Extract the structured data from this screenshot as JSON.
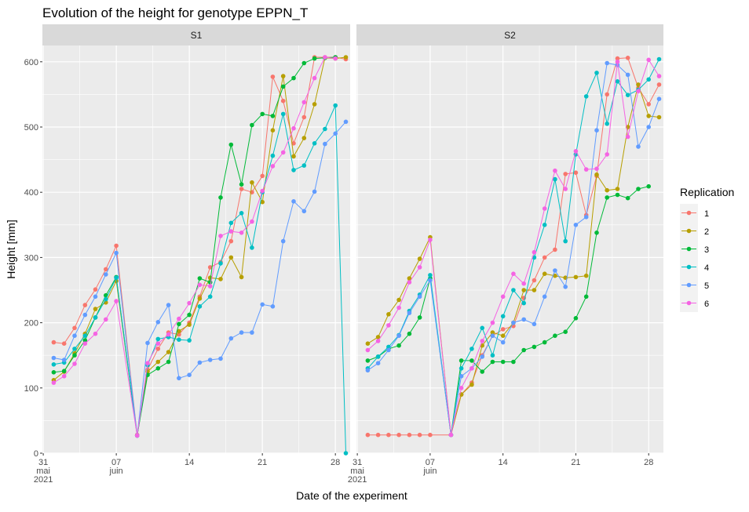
{
  "chart_data": {
    "type": "line",
    "title": "Evolution of the height for genotype EPPN_T",
    "xlabel": "Date of the experiment",
    "ylabel": "Height [mm]",
    "ylim": [
      0,
      625
    ],
    "xlim": [
      "2021-05-30T22:00",
      "2021-06-29T10:00"
    ],
    "grid": true,
    "legend": {
      "title": "Replication",
      "position": "right"
    },
    "x_ticks": [
      {
        "date": "2021-05-31",
        "label": [
          "31",
          "mai",
          "2021"
        ]
      },
      {
        "date": "2021-06-07",
        "label": [
          "07",
          "juin"
        ]
      },
      {
        "date": "2021-06-14",
        "label": [
          "14"
        ]
      },
      {
        "date": "2021-06-21",
        "label": [
          "21"
        ]
      },
      {
        "date": "2021-06-28",
        "label": [
          "28"
        ]
      }
    ],
    "y_ticks": [
      0,
      100,
      200,
      300,
      400,
      500,
      600
    ],
    "series_colors": {
      "1": "#F8766D",
      "2": "#B79F00",
      "3": "#00BA38",
      "4": "#00BFC4",
      "5": "#619CFF",
      "6": "#F564E3"
    },
    "panels": [
      {
        "name": "S1",
        "series": [
          {
            "name": "1",
            "x": [
              "2021-06-01",
              "2021-06-02",
              "2021-06-03",
              "2021-06-04",
              "2021-06-05",
              "2021-06-06",
              "2021-06-07",
              "2021-06-09",
              "2021-06-10",
              "2021-06-11",
              "2021-06-12",
              "2021-06-13",
              "2021-06-14",
              "2021-06-15",
              "2021-06-16",
              "2021-06-17",
              "2021-06-18",
              "2021-06-19",
              "2021-06-20",
              "2021-06-21",
              "2021-06-22",
              "2021-06-23",
              "2021-06-24",
              "2021-06-25",
              "2021-06-26",
              "2021-06-27",
              "2021-06-28",
              "2021-06-29"
            ],
            "values": [
              170,
              168,
              192,
              227,
              251,
              282,
              318,
              28,
              128,
              160,
              185,
              182,
              200,
              240,
              285,
              293,
              325,
              405,
              400,
              425,
              577,
              540,
              475,
              515,
              607,
              607,
              607,
              604
            ]
          },
          {
            "name": "2",
            "x": [
              "2021-06-01",
              "2021-06-02",
              "2021-06-03",
              "2021-06-04",
              "2021-06-05",
              "2021-06-06",
              "2021-06-07",
              "2021-06-09",
              "2021-06-10",
              "2021-06-11",
              "2021-06-12",
              "2021-06-13",
              "2021-06-14",
              "2021-06-15",
              "2021-06-16",
              "2021-06-17",
              "2021-06-18",
              "2021-06-19",
              "2021-06-20",
              "2021-06-21",
              "2021-06-22",
              "2021-06-23",
              "2021-06-24",
              "2021-06-25",
              "2021-06-26",
              "2021-06-27",
              "2021-06-28",
              "2021-06-29"
            ],
            "values": [
              112,
              125,
              153,
              183,
              221,
              231,
              264,
              27,
              125,
              140,
              155,
              187,
              197,
              237,
              269,
              267,
              300,
              270,
              415,
              385,
              495,
              578,
              455,
              483,
              535,
              606,
              605,
              607
            ]
          },
          {
            "name": "3",
            "x": [
              "2021-06-01",
              "2021-06-02",
              "2021-06-03",
              "2021-06-04",
              "2021-06-05",
              "2021-06-06",
              "2021-06-07",
              "2021-06-09",
              "2021-06-10",
              "2021-06-11",
              "2021-06-12",
              "2021-06-13",
              "2021-06-14",
              "2021-06-15",
              "2021-06-16",
              "2021-06-17",
              "2021-06-18",
              "2021-06-19",
              "2021-06-20",
              "2021-06-21",
              "2021-06-22",
              "2021-06-23",
              "2021-06-24",
              "2021-06-25",
              "2021-06-26",
              "2021-06-27",
              "2021-06-28"
            ],
            "values": [
              124,
              126,
              150,
              173,
              208,
              242,
              270,
              27,
              120,
              130,
              140,
              198,
              212,
              268,
              262,
              392,
              473,
              412,
              503,
              520,
              517,
              562,
              575,
              598,
              605,
              606,
              607
            ]
          },
          {
            "name": "4",
            "x": [
              "2021-06-01",
              "2021-06-02",
              "2021-06-03",
              "2021-06-04",
              "2021-06-05",
              "2021-06-06",
              "2021-06-07",
              "2021-06-09",
              "2021-06-10",
              "2021-06-11",
              "2021-06-12",
              "2021-06-13",
              "2021-06-14",
              "2021-06-15",
              "2021-06-16",
              "2021-06-17",
              "2021-06-18",
              "2021-06-19",
              "2021-06-20",
              "2021-06-21",
              "2021-06-22",
              "2021-06-23",
              "2021-06-24",
              "2021-06-25",
              "2021-06-26",
              "2021-06-27",
              "2021-06-28",
              "2021-06-29"
            ],
            "values": [
              136,
              139,
              160,
              180,
              208,
              236,
              269,
              27,
              135,
              175,
              178,
              174,
              173,
              225,
              240,
              291,
              353,
              368,
              315,
              400,
              456,
              520,
              434,
              441,
              475,
              497,
              533,
              0
            ]
          },
          {
            "name": "5",
            "x": [
              "2021-06-01",
              "2021-06-02",
              "2021-06-03",
              "2021-06-04",
              "2021-06-05",
              "2021-06-06",
              "2021-06-07",
              "2021-06-09",
              "2021-06-10",
              "2021-06-11",
              "2021-06-12",
              "2021-06-13",
              "2021-06-14",
              "2021-06-15",
              "2021-06-16",
              "2021-06-17",
              "2021-06-18",
              "2021-06-19",
              "2021-06-20",
              "2021-06-21",
              "2021-06-22",
              "2021-06-23",
              "2021-06-24",
              "2021-06-25",
              "2021-06-26",
              "2021-06-27",
              "2021-06-28",
              "2021-06-29"
            ],
            "values": [
              146,
              143,
              180,
              212,
              240,
              274,
              307,
              27,
              169,
              201,
              227,
              115,
              120,
              139,
              143,
              145,
              176,
              185,
              185,
              228,
              225,
              325,
              386,
              371,
              401,
              474,
              490,
              508
            ]
          },
          {
            "name": "6",
            "x": [
              "2021-06-01",
              "2021-06-02",
              "2021-06-03",
              "2021-06-04",
              "2021-06-05",
              "2021-06-06",
              "2021-06-07",
              "2021-06-09",
              "2021-06-10",
              "2021-06-11",
              "2021-06-12",
              "2021-06-13",
              "2021-06-14",
              "2021-06-15",
              "2021-06-16",
              "2021-06-17",
              "2021-06-18",
              "2021-06-19",
              "2021-06-20",
              "2021-06-21",
              "2021-06-22",
              "2021-06-23",
              "2021-06-24",
              "2021-06-25",
              "2021-06-26",
              "2021-06-27",
              "2021-06-28"
            ],
            "values": [
              108,
              118,
              137,
              168,
              183,
              205,
              233,
              27,
              138,
              168,
              182,
              206,
              230,
              258,
              256,
              333,
              340,
              338,
              355,
              402,
              440,
              461,
              498,
              538,
              575,
              607,
              605
            ]
          }
        ]
      },
      {
        "name": "S2",
        "series": [
          {
            "name": "1",
            "x": [
              "2021-06-01",
              "2021-06-02",
              "2021-06-03",
              "2021-06-04",
              "2021-06-05",
              "2021-06-06",
              "2021-06-07",
              "2021-06-09",
              "2021-06-10",
              "2021-06-11",
              "2021-06-12",
              "2021-06-13",
              "2021-06-14",
              "2021-06-15",
              "2021-06-16",
              "2021-06-17",
              "2021-06-18",
              "2021-06-19",
              "2021-06-20",
              "2021-06-21",
              "2021-06-22",
              "2021-06-23",
              "2021-06-24",
              "2021-06-25",
              "2021-06-26",
              "2021-06-27",
              "2021-06-28",
              "2021-06-29"
            ],
            "values": [
              28,
              28,
              28,
              28,
              28,
              28,
              28,
              28,
              90,
              108,
              150,
              180,
              190,
              195,
              238,
              265,
              300,
              312,
              428,
              430,
              365,
              425,
              550,
              605,
              606,
              560,
              535,
              565
            ]
          },
          {
            "name": "2",
            "x": [
              "2021-06-01",
              "2021-06-02",
              "2021-06-03",
              "2021-06-04",
              "2021-06-05",
              "2021-06-06",
              "2021-06-07",
              "2021-06-09",
              "2021-06-10",
              "2021-06-11",
              "2021-06-12",
              "2021-06-13",
              "2021-06-14",
              "2021-06-15",
              "2021-06-16",
              "2021-06-17",
              "2021-06-18",
              "2021-06-19",
              "2021-06-20",
              "2021-06-21",
              "2021-06-22",
              "2021-06-23",
              "2021-06-24",
              "2021-06-25",
              "2021-06-26",
              "2021-06-27",
              "2021-06-28",
              "2021-06-29"
            ],
            "values": [
              168,
              178,
              213,
              235,
              268,
              298,
              331,
              28,
              90,
              105,
              165,
              185,
              180,
              200,
              250,
              250,
              275,
              272,
              269,
              270,
              272,
              427,
              403,
              405,
              500,
              565,
              517,
              515
            ]
          },
          {
            "name": "3",
            "x": [
              "2021-06-01",
              "2021-06-02",
              "2021-06-03",
              "2021-06-04",
              "2021-06-05",
              "2021-06-06",
              "2021-06-07",
              "2021-06-09",
              "2021-06-10",
              "2021-06-11",
              "2021-06-12",
              "2021-06-13",
              "2021-06-14",
              "2021-06-15",
              "2021-06-16",
              "2021-06-17",
              "2021-06-18",
              "2021-06-19",
              "2021-06-20",
              "2021-06-21",
              "2021-06-22",
              "2021-06-23",
              "2021-06-24",
              "2021-06-25",
              "2021-06-26",
              "2021-06-27",
              "2021-06-28"
            ],
            "values": [
              142,
              148,
              160,
              165,
              183,
              208,
              268,
              28,
              142,
              142,
              125,
              140,
              140,
              140,
              158,
              163,
              170,
              180,
              186,
              207,
              240,
              338,
              392,
              396,
              391,
              405,
              409
            ]
          },
          {
            "name": "4",
            "x": [
              "2021-06-01",
              "2021-06-02",
              "2021-06-03",
              "2021-06-04",
              "2021-06-05",
              "2021-06-06",
              "2021-06-07",
              "2021-06-09",
              "2021-06-10",
              "2021-06-11",
              "2021-06-12",
              "2021-06-13",
              "2021-06-14",
              "2021-06-15",
              "2021-06-16",
              "2021-06-17",
              "2021-06-18",
              "2021-06-19",
              "2021-06-20",
              "2021-06-21",
              "2021-06-22",
              "2021-06-23",
              "2021-06-24",
              "2021-06-25",
              "2021-06-26",
              "2021-06-27",
              "2021-06-28",
              "2021-06-29"
            ],
            "values": [
              130,
              148,
              163,
              181,
              218,
              243,
              273,
              28,
              130,
              160,
              192,
              150,
              210,
              250,
              230,
              300,
              350,
              420,
              325,
              458,
              547,
              583,
              505,
              570,
              549,
              557,
              573,
              604
            ]
          },
          {
            "name": "5",
            "x": [
              "2021-06-01",
              "2021-06-02",
              "2021-06-03",
              "2021-06-04",
              "2021-06-05",
              "2021-06-06",
              "2021-06-07",
              "2021-06-09",
              "2021-06-10",
              "2021-06-11",
              "2021-06-12",
              "2021-06-13",
              "2021-06-14",
              "2021-06-15",
              "2021-06-16",
              "2021-06-17",
              "2021-06-18",
              "2021-06-19",
              "2021-06-20",
              "2021-06-21",
              "2021-06-22",
              "2021-06-23",
              "2021-06-24",
              "2021-06-25",
              "2021-06-26",
              "2021-06-27",
              "2021-06-28",
              "2021-06-29"
            ],
            "values": [
              127,
              138,
              158,
              180,
              215,
              240,
              265,
              28,
              118,
              130,
              148,
              180,
              170,
              200,
              205,
              198,
              240,
              280,
              255,
              350,
              362,
              495,
              598,
              595,
              580,
              470,
              500,
              543
            ]
          },
          {
            "name": "6",
            "x": [
              "2021-06-01",
              "2021-06-02",
              "2021-06-03",
              "2021-06-04",
              "2021-06-05",
              "2021-06-06",
              "2021-06-07",
              "2021-06-09",
              "2021-06-10",
              "2021-06-11",
              "2021-06-12",
              "2021-06-13",
              "2021-06-14",
              "2021-06-15",
              "2021-06-16",
              "2021-06-17",
              "2021-06-18",
              "2021-06-19",
              "2021-06-20",
              "2021-06-21",
              "2021-06-22",
              "2021-06-23",
              "2021-06-24",
              "2021-06-25",
              "2021-06-26",
              "2021-06-27",
              "2021-06-28",
              "2021-06-29"
            ],
            "values": [
              158,
              172,
              196,
              223,
              262,
              285,
              327,
              28,
              100,
              130,
              172,
              200,
              240,
              275,
              260,
              308,
              375,
              433,
              405,
              463,
              435,
              436,
              458,
              600,
              485,
              555,
              603,
              578
            ]
          }
        ]
      }
    ]
  }
}
